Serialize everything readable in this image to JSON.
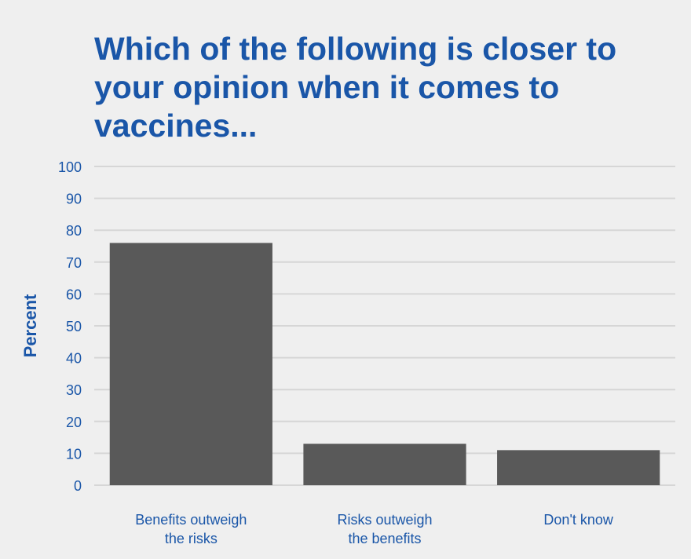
{
  "chart_data": {
    "type": "bar",
    "title": "Which of the following is closer to your opinion when it comes to vaccines...",
    "ylabel": "Percent",
    "xlabel": "",
    "categories": [
      "Benefits outweigh the risks",
      "Risks outweigh the benefits",
      "Don't know"
    ],
    "values": [
      76,
      13,
      11
    ],
    "ylim": [
      0,
      100
    ],
    "yticks": [
      0,
      10,
      20,
      30,
      40,
      50,
      60,
      70,
      80,
      90,
      100
    ],
    "grid": true,
    "legend": "none",
    "colors": {
      "bar": "#595959",
      "text": "#1a56a8",
      "grid": "#d6d6d6",
      "background": "#efefef"
    }
  }
}
